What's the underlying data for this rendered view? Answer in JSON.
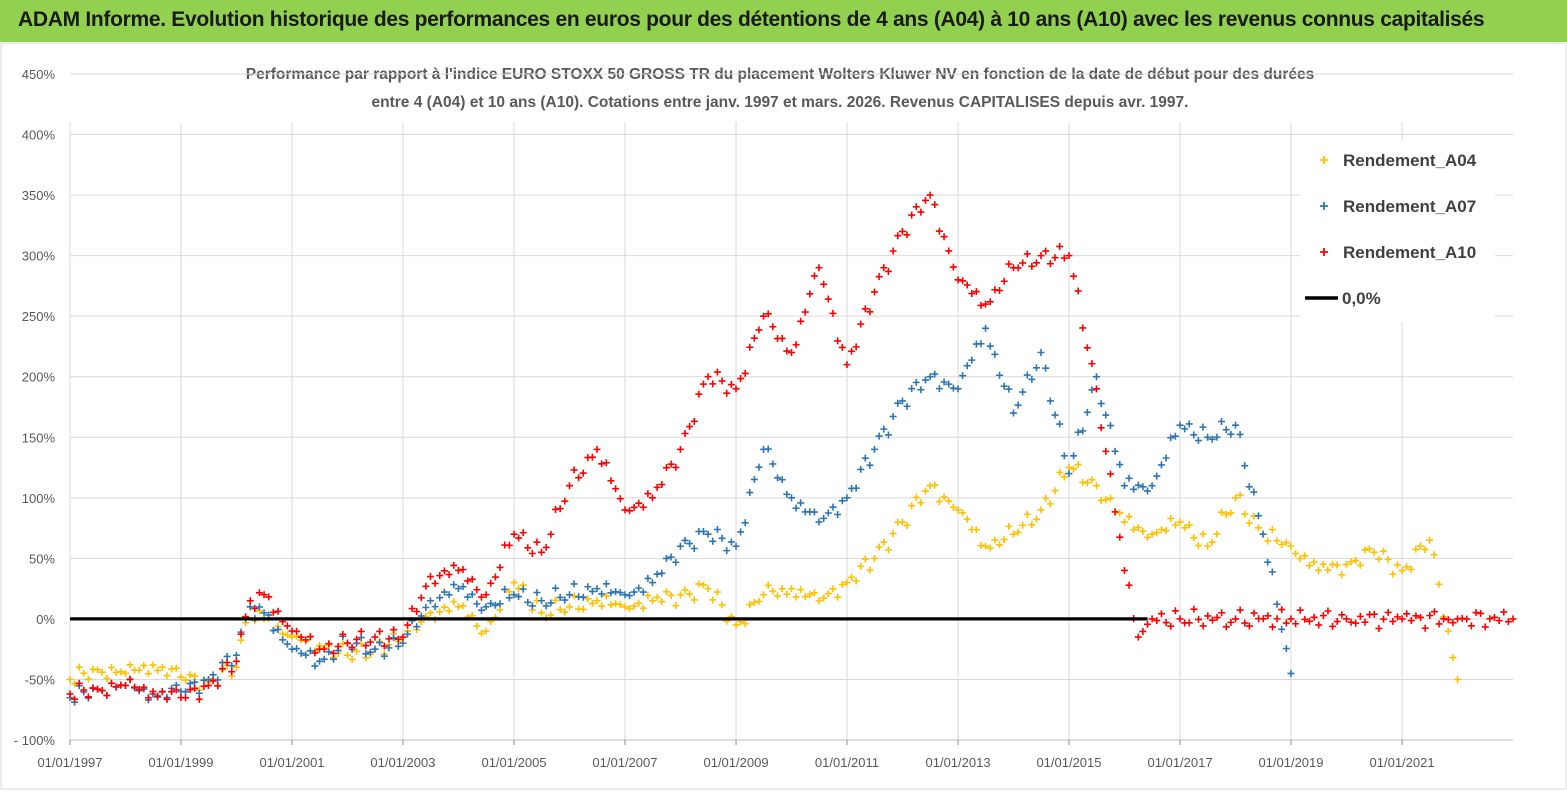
{
  "header": {
    "title": "ADAM Informe. Evolution historique des performances en euros pour des détentions de 4 ans (A04) à 10 ans (A10) avec les revenus connus capitalisés",
    "background_color": "#92d050"
  },
  "chart_data": {
    "type": "scatter",
    "title_lines": [
      "Performance par rapport à l'indice EURO STOXX 50 GROSS TR  du placement Wolters Kluwer NV  en fonction de la date de début pour des durées",
      "entre 4 (A04) et 10 ans (A10). Cotations entre janv. 1997 et mars. 2026. Revenus CAPITALISES depuis avr. 1997."
    ],
    "xlabel": "",
    "ylabel": "",
    "ylim": [
      -100,
      450
    ],
    "xlim": [
      "1997-01-01",
      "2023-01-01"
    ],
    "y_ticks": [
      -100,
      -50,
      0,
      50,
      100,
      150,
      200,
      250,
      300,
      350,
      400,
      450
    ],
    "y_tick_labels": [
      "- 100%",
      "-50%",
      "0%",
      "50%",
      "100%",
      "150%",
      "200%",
      "250%",
      "300%",
      "350%",
      "400%",
      "450%"
    ],
    "x_tick_labels": [
      "01/01/1997",
      "01/01/1999",
      "01/01/2001",
      "01/01/2003",
      "01/01/2005",
      "01/01/2007",
      "01/01/2009",
      "01/01/2011",
      "01/01/2013",
      "01/01/2015",
      "01/01/2017",
      "01/01/2019",
      "01/01/2021"
    ],
    "grid": true,
    "legend_position": "top-right",
    "legend": [
      {
        "name": "Rendement_A04",
        "color": "#ffc000",
        "marker": "+"
      },
      {
        "name": "Rendement_A07",
        "color": "#2e75b6",
        "marker": "+"
      },
      {
        "name": "Rendement_A10",
        "color": "#ff0000",
        "marker": "+"
      },
      {
        "name": "0,0%",
        "color": "#000000",
        "marker": "line"
      }
    ],
    "series": [
      {
        "name": "Rendement_A04",
        "color": "#ffc000",
        "x": [
          "1997-01-01",
          "1997-07-01",
          "1998-01-01",
          "1998-07-01",
          "1999-01-01",
          "1999-07-01",
          "2000-01-01",
          "2000-04-01",
          "2000-07-01",
          "2001-01-01",
          "2001-07-01",
          "2002-01-01",
          "2002-07-01",
          "2003-01-01",
          "2003-07-01",
          "2004-01-01",
          "2004-07-01",
          "2005-01-01",
          "2005-07-01",
          "2006-01-01",
          "2006-07-01",
          "2007-01-01",
          "2007-07-01",
          "2008-01-01",
          "2008-07-01",
          "2009-01-01",
          "2009-07-01",
          "2010-01-01",
          "2010-07-01",
          "2011-01-01",
          "2011-07-01",
          "2012-01-01",
          "2012-07-01",
          "2013-01-01",
          "2013-07-01",
          "2014-01-01",
          "2014-07-01",
          "2015-01-01",
          "2015-07-01",
          "2016-01-01",
          "2016-07-01",
          "2017-01-01",
          "2017-07-01",
          "2018-01-01",
          "2018-07-01",
          "2019-01-01",
          "2019-07-01",
          "2020-01-01",
          "2020-07-01",
          "2021-01-01",
          "2021-07-01",
          "2022-01-01"
        ],
        "values": [
          -50,
          -42,
          -45,
          -38,
          -48,
          -52,
          -40,
          10,
          0,
          -15,
          -22,
          -30,
          -25,
          -15,
          5,
          10,
          -10,
          30,
          5,
          10,
          15,
          10,
          15,
          20,
          25,
          -5,
          20,
          25,
          15,
          30,
          50,
          80,
          110,
          90,
          60,
          70,
          90,
          125,
          110,
          80,
          70,
          80,
          60,
          100,
          70,
          60,
          40,
          45,
          55,
          40,
          65,
          -50
        ]
      },
      {
        "name": "Rendement_A07",
        "color": "#2e75b6",
        "x": [
          "1997-01-01",
          "1997-07-01",
          "1998-01-01",
          "1998-07-01",
          "1999-01-01",
          "1999-07-01",
          "2000-01-01",
          "2000-04-01",
          "2000-07-01",
          "2001-01-01",
          "2001-07-01",
          "2002-01-01",
          "2002-07-01",
          "2003-01-01",
          "2003-07-01",
          "2004-01-01",
          "2004-07-01",
          "2005-01-01",
          "2005-07-01",
          "2006-01-01",
          "2006-07-01",
          "2007-01-01",
          "2007-07-01",
          "2008-01-01",
          "2008-07-01",
          "2009-01-01",
          "2009-07-01",
          "2010-01-01",
          "2010-07-01",
          "2011-01-01",
          "2011-07-01",
          "2012-01-01",
          "2012-07-01",
          "2013-01-01",
          "2013-07-01",
          "2014-01-01",
          "2014-07-01",
          "2015-01-01",
          "2015-07-01",
          "2016-01-01",
          "2016-07-01",
          "2017-01-01",
          "2017-07-01",
          "2018-01-01",
          "2018-07-01",
          "2019-01-01"
        ],
        "values": [
          -65,
          -58,
          -55,
          -62,
          -60,
          -50,
          -30,
          10,
          5,
          -25,
          -35,
          -20,
          -25,
          -20,
          15,
          25,
          10,
          20,
          15,
          20,
          25,
          20,
          30,
          60,
          70,
          60,
          140,
          100,
          80,
          100,
          140,
          180,
          200,
          190,
          240,
          170,
          220,
          120,
          200,
          110,
          110,
          160,
          150,
          160,
          70,
          -45
        ]
      },
      {
        "name": "Rendement_A10",
        "color": "#ff0000",
        "x": [
          "1997-01-01",
          "1997-07-01",
          "1998-01-01",
          "1998-07-01",
          "1999-01-01",
          "1999-07-01",
          "2000-01-01",
          "2000-04-01",
          "2000-07-01",
          "2001-01-01",
          "2001-07-01",
          "2002-01-01",
          "2002-07-01",
          "2003-01-01",
          "2003-07-01",
          "2004-01-01",
          "2004-07-01",
          "2005-01-01",
          "2005-07-01",
          "2006-01-01",
          "2006-07-01",
          "2007-01-01",
          "2007-07-01",
          "2008-01-01",
          "2008-07-01",
          "2009-01-01",
          "2009-07-01",
          "2010-01-01",
          "2010-07-01",
          "2011-01-01",
          "2011-07-01",
          "2012-01-01",
          "2012-07-01",
          "2013-01-01",
          "2013-07-01",
          "2014-01-01",
          "2014-07-01",
          "2015-01-01",
          "2015-07-01",
          "2016-01-01",
          "2016-04-01",
          "2016-07-01",
          "2017-01-01",
          "2018-01-01",
          "2019-01-01",
          "2020-01-01",
          "2021-01-01",
          "2022-01-01",
          "2023-01-01"
        ],
        "values": [
          -62,
          -58,
          -55,
          -60,
          -65,
          -55,
          -35,
          15,
          20,
          -10,
          -25,
          -20,
          -15,
          -15,
          35,
          40,
          20,
          70,
          55,
          110,
          140,
          90,
          100,
          140,
          200,
          190,
          250,
          220,
          290,
          210,
          270,
          320,
          350,
          280,
          260,
          290,
          300,
          300,
          190,
          40,
          -15,
          0,
          0,
          0,
          0,
          0,
          0,
          0,
          0
        ]
      },
      {
        "name": "0,0%",
        "color": "#000000",
        "x": [
          "1997-01-01",
          "2016-06-01"
        ],
        "values": [
          0,
          0
        ]
      }
    ]
  }
}
